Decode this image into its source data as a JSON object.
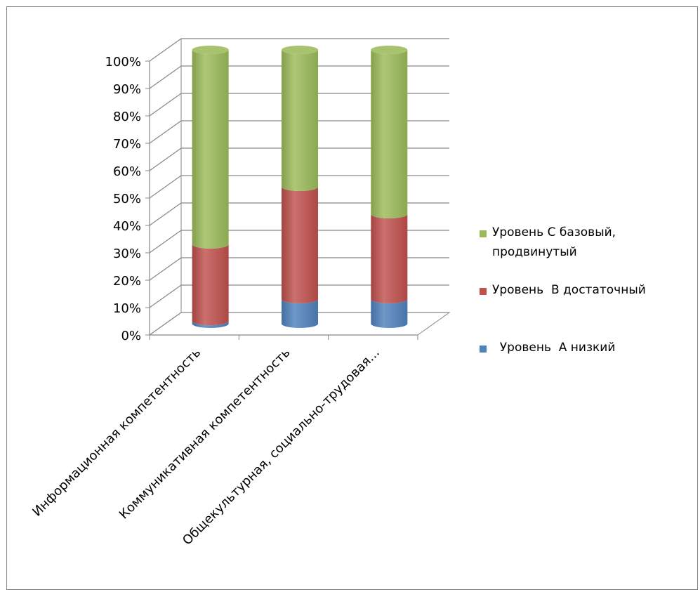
{
  "chart_data": {
    "type": "bar",
    "stacked": true,
    "percent_stacked": true,
    "three_d": true,
    "categories": [
      "Информационная компетентность",
      "Коммуникативная компетентность",
      "Общекультурная, социально-трудовая..."
    ],
    "series": [
      {
        "name": "Уровень  А низкий",
        "color": "#4f81bd",
        "values": [
          1,
          9,
          9
        ]
      },
      {
        "name": "Уровень  В достаточный",
        "color": "#c0504d",
        "values": [
          28,
          41,
          31
        ]
      },
      {
        "name": "Уровень С базовый, продвинутый",
        "color": "#9bbb59",
        "values": [
          71,
          50,
          60
        ]
      }
    ],
    "ylim": [
      0,
      100
    ],
    "y_tick_labels": [
      "0%",
      "10%",
      "20%",
      "30%",
      "40%",
      "50%",
      "60%",
      "70%",
      "80%",
      "90%",
      "100%"
    ],
    "grid": true,
    "legend_position": "right"
  },
  "legend": {
    "items": [
      {
        "line1": "Уровень С базовый,",
        "line2": "продвинутый",
        "color": "#9bbb59"
      },
      {
        "line1": "Уровень  В достаточный",
        "line2": "",
        "color": "#c0504d"
      },
      {
        "line1": "  Уровень  А низкий",
        "line2": "",
        "color": "#4f81bd"
      }
    ]
  }
}
